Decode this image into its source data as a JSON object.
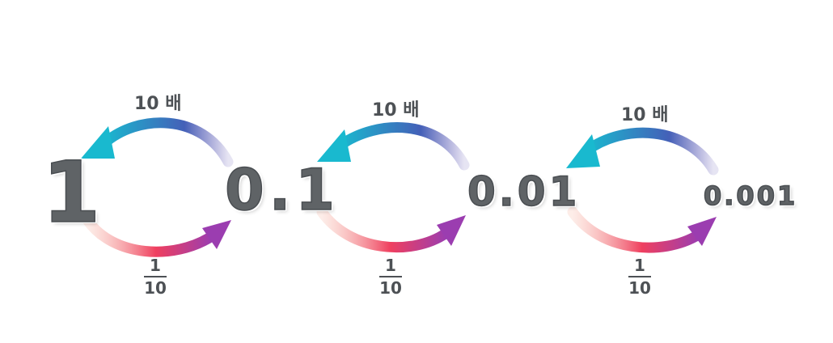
{
  "numbers": [
    "1",
    "0.1",
    "0.01",
    "0.001"
  ],
  "upper_label": "10 배",
  "fraction": {
    "numerator": "1",
    "denominator": "10"
  },
  "colors": {
    "upper_arrow_start": "#5a4fb0",
    "upper_arrow_end": "#19b9cf",
    "lower_arrow_start": "#f7b6a4",
    "lower_arrow_mid": "#ef3f5f",
    "lower_arrow_end": "#9b3db0",
    "number_fill": "#5f6366"
  }
}
